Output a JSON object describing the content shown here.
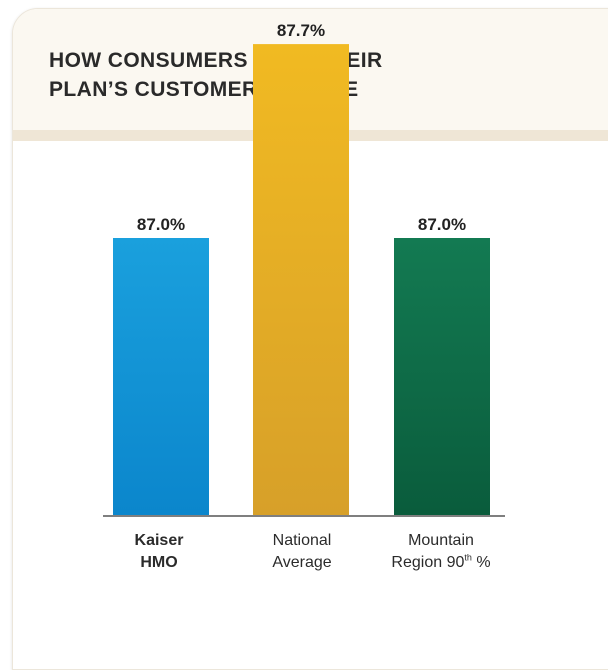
{
  "title_lines": [
    "HOW CONSUMERS RATE THEIR",
    "PLAN’S CUSTOMER SERVICE"
  ],
  "colors": {
    "kaiser_top": "#1aa0dd",
    "kaiser_bottom": "#0b86cc",
    "national_top": "#f1ba22",
    "national_bottom": "#d7a029",
    "mountain_top": "#137a52",
    "mountain_bottom": "#0a5c3c",
    "header_bg": "#fbf8f1",
    "header_rule": "#efe6d6",
    "axis": "#555555"
  },
  "categories": [
    {
      "line1": "Kaiser",
      "line2": "HMO",
      "bold": true
    },
    {
      "line1": "National",
      "line2": "Average",
      "bold": false
    },
    {
      "line1": "Mountain",
      "line2_main": "Region 90",
      "line2_sup": "th",
      "line2_tail": " %",
      "bold": false
    }
  ],
  "chart_data": {
    "type": "bar",
    "title": "HOW CONSUMERS RATE THEIR PLAN’S CUSTOMER SERVICE",
    "categories": [
      "Kaiser HMO",
      "National Average",
      "Mountain Region 90th %"
    ],
    "values": [
      87.0,
      87.7,
      87.0
    ],
    "data_labels": [
      "87.0%",
      "87.7%",
      "87.0%"
    ],
    "xlabel": "",
    "ylabel": "",
    "grid": false,
    "legend": "none"
  }
}
